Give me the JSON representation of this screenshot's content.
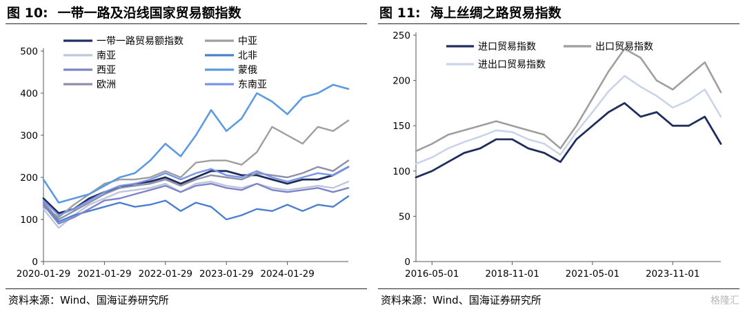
{
  "left_figure": {
    "number": "图 10:",
    "title": "一带一路及沿线国家贸易额指数",
    "source": "资料来源：Wind、国海证券研究所"
  },
  "right_figure": {
    "number": "图 11:",
    "title": "海上丝绸之路贸易指数",
    "source": "资料来源：Wind、国海证券研究所"
  },
  "watermark": "格隆汇",
  "chart_data": [
    {
      "type": "line",
      "title": "一带一路及沿线国家贸易额指数",
      "xlabel": "",
      "ylabel": "",
      "ylim": [
        0,
        500
      ],
      "yticks": [
        0,
        100,
        200,
        300,
        400,
        500
      ],
      "x": [
        "2020-01",
        "2020-04",
        "2020-07",
        "2020-10",
        "2021-01",
        "2021-04",
        "2021-07",
        "2021-10",
        "2022-01",
        "2022-04",
        "2022-07",
        "2022-10",
        "2023-01",
        "2023-04",
        "2023-07",
        "2023-10",
        "2024-01",
        "2024-04",
        "2024-07",
        "2024-10",
        "2025-01"
      ],
      "xtick_labels": [
        "2020-01-29",
        "2021-01-29",
        "2022-01-29",
        "2023-01-29",
        "2024-01-29"
      ],
      "xtick_positions": [
        "2020-01",
        "2021-01",
        "2022-01",
        "2023-01",
        "2024-01"
      ],
      "grid": false,
      "legend_position": "top-left",
      "legend_columns": 2,
      "series": [
        {
          "name": "一带一路贸易额指数",
          "color": "#1f2d5c",
          "width": 2.8,
          "values": [
            150,
            115,
            125,
            150,
            165,
            175,
            185,
            190,
            200,
            185,
            200,
            215,
            215,
            205,
            205,
            195,
            185,
            195,
            195,
            205,
            225
          ]
        },
        {
          "name": "中亚",
          "color": "#9e9e9e",
          "width": 2.4,
          "values": [
            130,
            105,
            135,
            160,
            185,
            195,
            195,
            200,
            215,
            200,
            235,
            240,
            240,
            230,
            260,
            320,
            300,
            280,
            320,
            310,
            335
          ]
        },
        {
          "name": "南亚",
          "color": "#bcc6dc",
          "width": 2.4,
          "values": [
            125,
            80,
            110,
            135,
            150,
            165,
            170,
            175,
            185,
            165,
            185,
            190,
            180,
            175,
            185,
            175,
            170,
            175,
            180,
            175,
            190
          ]
        },
        {
          "name": "北非",
          "color": "#4a7fd0",
          "width": 2.4,
          "values": [
            140,
            95,
            110,
            120,
            130,
            140,
            130,
            135,
            145,
            120,
            140,
            130,
            100,
            110,
            125,
            120,
            135,
            120,
            135,
            130,
            155
          ]
        },
        {
          "name": "西亚",
          "color": "#7e84c8",
          "width": 2.4,
          "values": [
            135,
            90,
            105,
            125,
            145,
            150,
            160,
            170,
            180,
            165,
            180,
            185,
            175,
            170,
            185,
            170,
            165,
            170,
            175,
            165,
            175
          ]
        },
        {
          "name": "蒙俄",
          "color": "#5b9ae0",
          "width": 2.6,
          "values": [
            195,
            140,
            150,
            160,
            180,
            200,
            210,
            240,
            280,
            250,
            300,
            360,
            310,
            340,
            400,
            380,
            350,
            390,
            400,
            420,
            410
          ]
        },
        {
          "name": "欧洲",
          "color": "#8d8fa8",
          "width": 2.4,
          "values": [
            140,
            100,
            120,
            140,
            160,
            175,
            180,
            185,
            195,
            180,
            195,
            205,
            200,
            195,
            210,
            205,
            200,
            210,
            225,
            215,
            240
          ]
        },
        {
          "name": "东南亚",
          "color": "#7894e6",
          "width": 2.4,
          "values": [
            145,
            110,
            125,
            145,
            165,
            180,
            185,
            195,
            210,
            195,
            210,
            220,
            205,
            200,
            215,
            200,
            190,
            200,
            210,
            205,
            225
          ]
        }
      ]
    },
    {
      "type": "line",
      "title": "海上丝绸之路贸易指数",
      "xlabel": "",
      "ylabel": "",
      "ylim": [
        0,
        250
      ],
      "yticks": [
        0,
        50,
        100,
        150,
        200,
        250
      ],
      "x": [
        "2015-11",
        "2016-05",
        "2016-11",
        "2017-05",
        "2017-11",
        "2018-05",
        "2018-11",
        "2019-05",
        "2019-11",
        "2020-05",
        "2020-11",
        "2021-05",
        "2021-11",
        "2022-05",
        "2022-11",
        "2023-05",
        "2023-11",
        "2024-05",
        "2024-11",
        "2025-03"
      ],
      "xtick_labels": [
        "2016-05-01",
        "2018-11-01",
        "2021-05-01",
        "2023-11-01"
      ],
      "xtick_positions": [
        "2016-05",
        "2018-11",
        "2021-05",
        "2023-11"
      ],
      "grid": false,
      "legend_position": "top-left",
      "legend_columns": 2,
      "series": [
        {
          "name": "进口贸易指数",
          "color": "#1f2d5c",
          "width": 2.8,
          "values": [
            93,
            100,
            110,
            120,
            125,
            135,
            135,
            125,
            120,
            110,
            135,
            150,
            165,
            175,
            160,
            165,
            150,
            150,
            160,
            130
          ]
        },
        {
          "name": "出口贸易指数",
          "color": "#9e9e9e",
          "width": 2.6,
          "values": [
            122,
            130,
            140,
            145,
            150,
            155,
            150,
            145,
            140,
            125,
            150,
            180,
            210,
            235,
            225,
            200,
            190,
            205,
            220,
            187
          ]
        },
        {
          "name": "进出口贸易指数",
          "color": "#c9d3ea",
          "width": 2.6,
          "values": [
            108,
            115,
            125,
            132,
            138,
            145,
            143,
            135,
            130,
            118,
            143,
            165,
            188,
            205,
            193,
            183,
            170,
            178,
            190,
            160
          ]
        }
      ]
    }
  ]
}
